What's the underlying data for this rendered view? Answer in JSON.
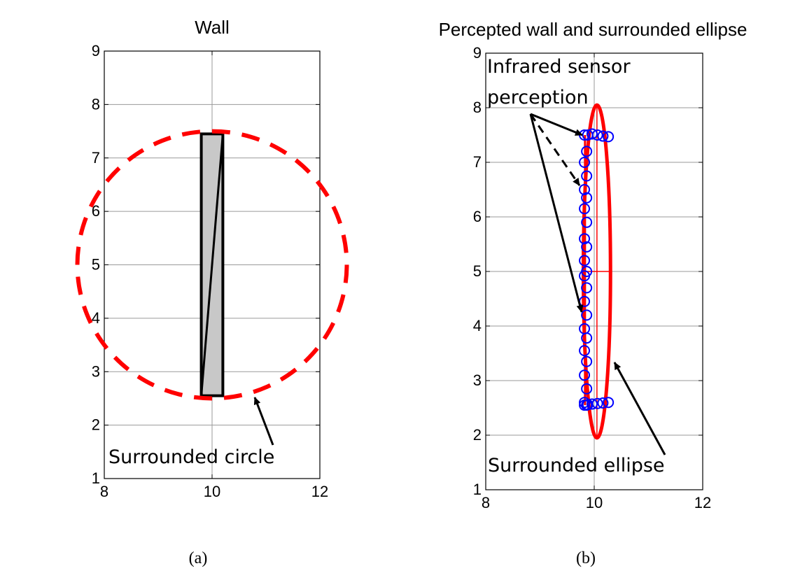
{
  "chart_data": [
    {
      "type": "line",
      "title": "Wall",
      "xlim": [
        8,
        12
      ],
      "ylim": [
        1,
        9
      ],
      "x_ticks": [
        "8",
        "10",
        "12"
      ],
      "y_ticks": [
        "1",
        "2",
        "3",
        "4",
        "5",
        "6",
        "7",
        "8",
        "9"
      ],
      "grid": true,
      "series": [
        {
          "kind": "wall",
          "corners": [
            [
              9.8,
              2.55
            ],
            [
              10.2,
              2.55
            ],
            [
              10.2,
              7.45
            ],
            [
              9.8,
              7.45
            ]
          ],
          "fill": "#c8c8c8",
          "stroke": "#000000"
        },
        {
          "kind": "circle",
          "center": [
            10,
            5
          ],
          "radius": 2.5,
          "color": "#ff0000",
          "style": "dashed"
        }
      ],
      "annotations": [
        {
          "text": "Surrounded circle",
          "target": [
            10.7,
            2.45
          ]
        }
      ],
      "caption": "(a)"
    },
    {
      "type": "scatter",
      "title": "Percepted wall and surrounded ellipse",
      "xlim": [
        8,
        12
      ],
      "ylim": [
        1,
        9
      ],
      "x_ticks": [
        "8",
        "10",
        "12"
      ],
      "y_ticks": [
        "1",
        "2",
        "3",
        "4",
        "5",
        "6",
        "7",
        "8",
        "9"
      ],
      "grid": true,
      "series": [
        {
          "kind": "sensor_points",
          "color": "#0000ff",
          "marker": "circle-open",
          "x": [
            9.82,
            9.86,
            9.82,
            9.86,
            9.82,
            9.86,
            9.82,
            9.86,
            9.82,
            9.86,
            9.82,
            9.86,
            9.82,
            9.86,
            9.82,
            9.86,
            9.82,
            9.86,
            9.82,
            9.86,
            9.82,
            9.86,
            9.82,
            9.86,
            9.82,
            9.88,
            9.96,
            10.06,
            10.16,
            10.26,
            9.88,
            9.96,
            10.06,
            10.16,
            10.26
          ],
          "y": [
            7.5,
            7.2,
            7.0,
            6.75,
            6.5,
            6.35,
            6.15,
            5.9,
            5.6,
            5.45,
            5.2,
            5.0,
            4.92,
            4.7,
            4.45,
            4.2,
            3.95,
            3.78,
            3.55,
            3.35,
            3.1,
            2.85,
            2.6,
            2.55,
            2.55,
            7.5,
            7.52,
            7.5,
            7.48,
            7.47,
            2.56,
            2.57,
            2.58,
            2.59,
            2.6
          ]
        },
        {
          "kind": "wall_line",
          "x": [
            9.83,
            9.83
          ],
          "y": [
            2.55,
            7.5
          ],
          "color": "#ff0000"
        },
        {
          "kind": "ellipse",
          "center": [
            10.05,
            5
          ],
          "semi_axes": [
            0.25,
            3.05
          ],
          "color": "#ff0000",
          "style": "solid"
        },
        {
          "kind": "axis_cross",
          "center": [
            10.05,
            5
          ],
          "color": "#ff0000"
        }
      ],
      "annotations": [
        {
          "text_lines": [
            "Infrared sensor",
            "perception"
          ]
        },
        {
          "text": "Surrounded ellipse",
          "target": [
            10.3,
            3.35
          ]
        }
      ],
      "caption": "(b)"
    }
  ]
}
